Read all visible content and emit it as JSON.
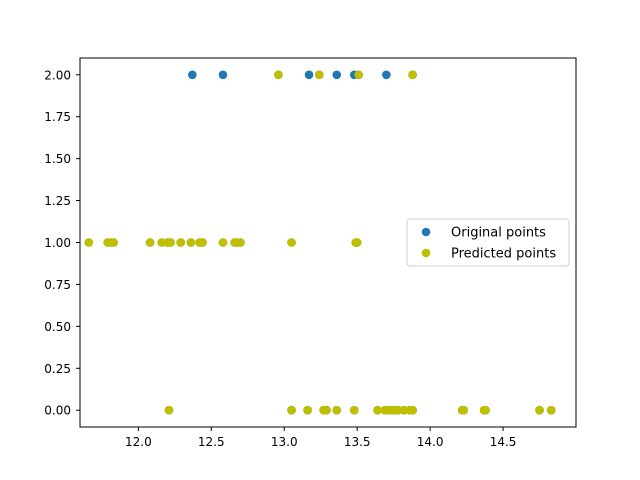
{
  "chart_data": {
    "type": "scatter",
    "title": "",
    "xlabel": "",
    "ylabel": "",
    "xlim": [
      11.6,
      15.0
    ],
    "ylim": [
      -0.1,
      2.1
    ],
    "x_ticks": [
      12.0,
      12.5,
      13.0,
      13.5,
      14.0,
      14.5
    ],
    "x_tick_labels": [
      "12.0",
      "12.5",
      "13.0",
      "13.5",
      "14.0",
      "14.5"
    ],
    "y_ticks": [
      0.0,
      0.25,
      0.5,
      0.75,
      1.0,
      1.25,
      1.5,
      1.75,
      2.0
    ],
    "y_tick_labels": [
      "0.00",
      "0.25",
      "0.50",
      "0.75",
      "1.00",
      "1.25",
      "1.50",
      "1.75",
      "2.00"
    ],
    "legend_position": "center-right",
    "series": [
      {
        "name": "Original points",
        "color": "#1f77b4",
        "points": [
          [
            12.37,
            2
          ],
          [
            12.58,
            2
          ],
          [
            12.96,
            2
          ],
          [
            13.17,
            2
          ],
          [
            13.24,
            2
          ],
          [
            13.36,
            2
          ],
          [
            13.48,
            2
          ],
          [
            13.51,
            2
          ],
          [
            13.7,
            2
          ],
          [
            13.88,
            2
          ],
          [
            11.66,
            1
          ],
          [
            11.79,
            1
          ],
          [
            11.81,
            1
          ],
          [
            11.83,
            1
          ],
          [
            12.08,
            1
          ],
          [
            12.16,
            1
          ],
          [
            12.2,
            1
          ],
          [
            12.22,
            1
          ],
          [
            12.29,
            1
          ],
          [
            12.36,
            1
          ],
          [
            12.42,
            1
          ],
          [
            12.44,
            1
          ],
          [
            12.58,
            1
          ],
          [
            12.66,
            1
          ],
          [
            12.68,
            1
          ],
          [
            12.7,
            1
          ],
          [
            13.05,
            1
          ],
          [
            13.49,
            1
          ],
          [
            13.5,
            1
          ],
          [
            12.21,
            0
          ],
          [
            13.05,
            0
          ],
          [
            13.16,
            0
          ],
          [
            13.27,
            0
          ],
          [
            13.29,
            0
          ],
          [
            13.36,
            0
          ],
          [
            13.48,
            0
          ],
          [
            13.64,
            0
          ],
          [
            13.69,
            0
          ],
          [
            13.72,
            0
          ],
          [
            13.74,
            0
          ],
          [
            13.76,
            0
          ],
          [
            13.78,
            0
          ],
          [
            13.82,
            0
          ],
          [
            13.86,
            0
          ],
          [
            13.88,
            0
          ],
          [
            14.22,
            0
          ],
          [
            14.23,
            0
          ],
          [
            14.37,
            0
          ],
          [
            14.38,
            0
          ],
          [
            14.75,
            0
          ],
          [
            14.83,
            0
          ]
        ]
      },
      {
        "name": "Predicted points",
        "color": "#bfbf00",
        "points": [
          [
            12.96,
            2
          ],
          [
            13.24,
            2
          ],
          [
            13.51,
            2
          ],
          [
            13.88,
            2
          ],
          [
            11.66,
            1
          ],
          [
            11.79,
            1
          ],
          [
            11.81,
            1
          ],
          [
            11.83,
            1
          ],
          [
            12.08,
            1
          ],
          [
            12.16,
            1
          ],
          [
            12.2,
            1
          ],
          [
            12.22,
            1
          ],
          [
            12.29,
            1
          ],
          [
            12.36,
            1
          ],
          [
            12.42,
            1
          ],
          [
            12.44,
            1
          ],
          [
            12.58,
            1
          ],
          [
            12.66,
            1
          ],
          [
            12.68,
            1
          ],
          [
            12.7,
            1
          ],
          [
            13.05,
            1
          ],
          [
            13.49,
            1
          ],
          [
            13.5,
            1
          ],
          [
            12.21,
            0
          ],
          [
            13.05,
            0
          ],
          [
            13.16,
            0
          ],
          [
            13.27,
            0
          ],
          [
            13.29,
            0
          ],
          [
            13.36,
            0
          ],
          [
            13.48,
            0
          ],
          [
            13.64,
            0
          ],
          [
            13.69,
            0
          ],
          [
            13.72,
            0
          ],
          [
            13.74,
            0
          ],
          [
            13.76,
            0
          ],
          [
            13.78,
            0
          ],
          [
            13.82,
            0
          ],
          [
            13.86,
            0
          ],
          [
            13.88,
            0
          ],
          [
            14.22,
            0
          ],
          [
            14.23,
            0
          ],
          [
            14.37,
            0
          ],
          [
            14.38,
            0
          ],
          [
            14.75,
            0
          ],
          [
            14.83,
            0
          ]
        ]
      }
    ]
  }
}
